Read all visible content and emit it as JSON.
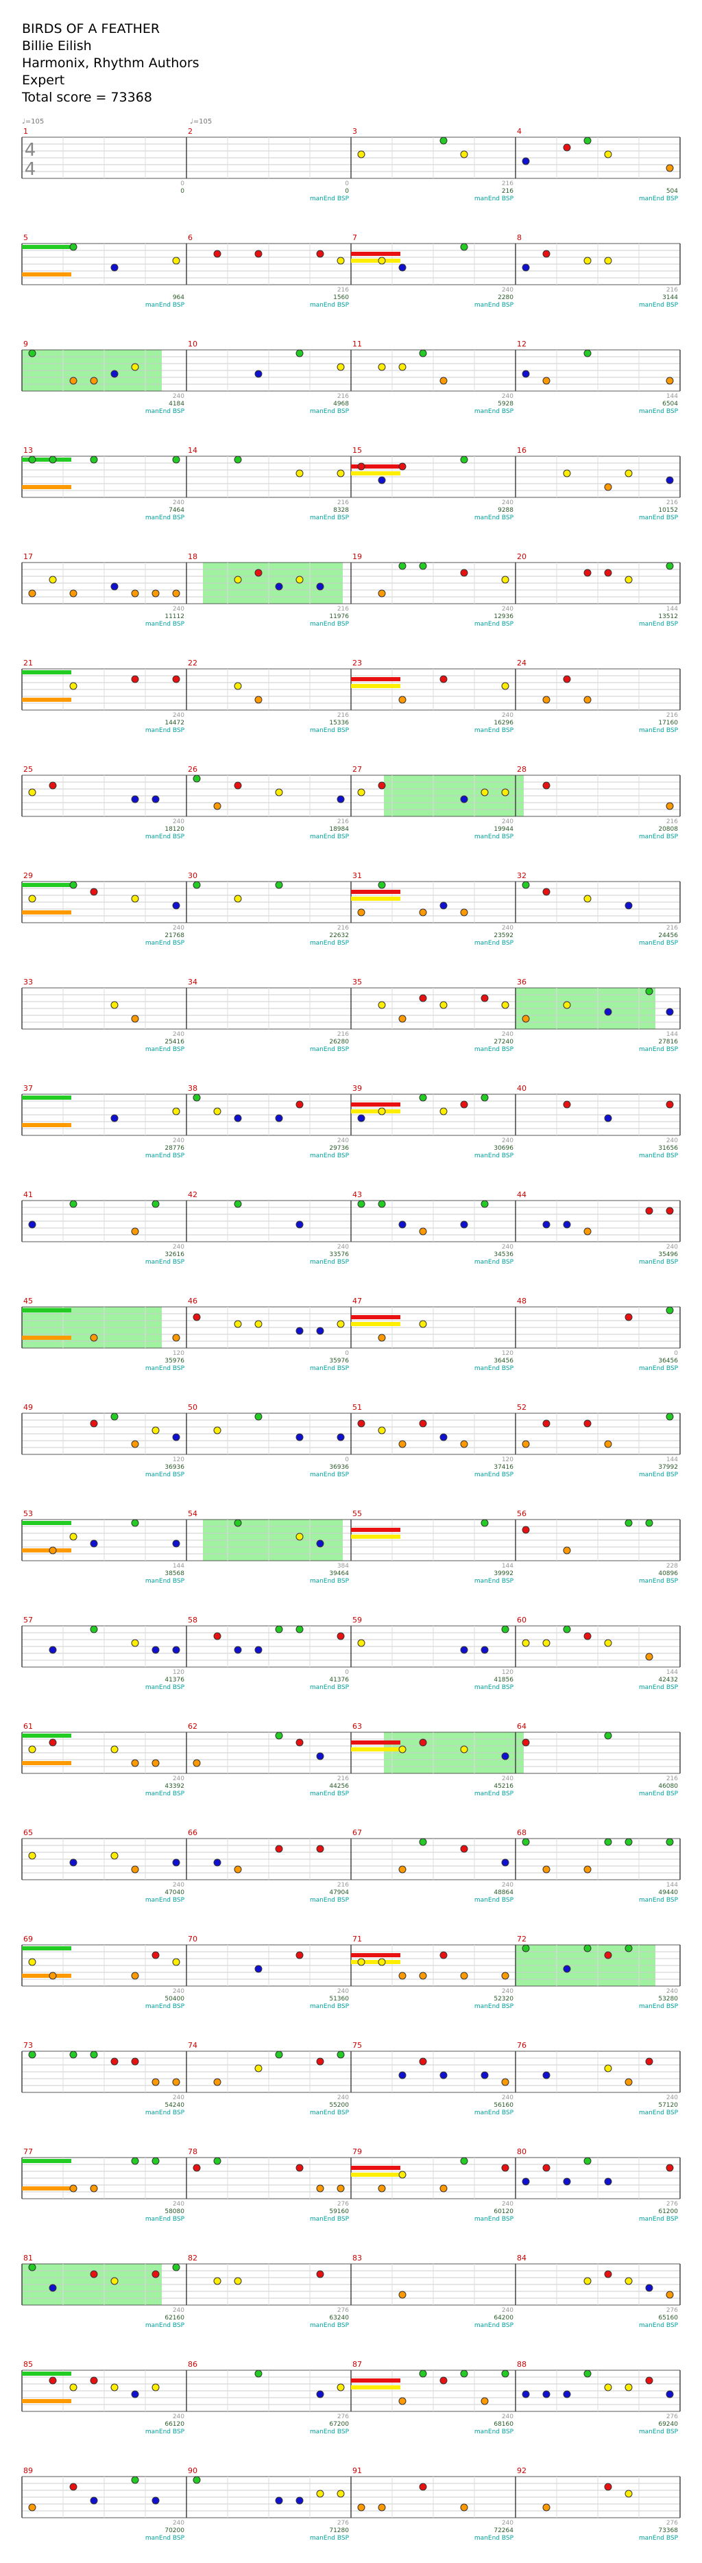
{
  "header": {
    "title": "BIRDS OF A FEATHER",
    "artist": "Billie Eilish",
    "charter": "Harmonix, Rhythm Authors",
    "difficulty": "Expert",
    "total_score": "Total score = 73368"
  },
  "tempo_marks": [
    {
      "label": "♩=105",
      "measure": 1
    },
    {
      "label": "♩=105",
      "measure": 2
    }
  ],
  "time_signature": {
    "top": "4",
    "bottom": "4"
  },
  "phrase_label": "manEnd BSP",
  "colors": {
    "green": "#22cc22",
    "red": "#e81010",
    "yellow": "#ffee00",
    "blue": "#1010d0",
    "orange": "#ff9900",
    "starpower": "#88ee88",
    "measure_number": "#cc0000",
    "score_text": "#2a5a2a",
    "tick_text": "#999999",
    "phrase_text": "#00a0a0"
  },
  "rows": [
    {
      "measures": [
        1,
        2,
        3,
        4
      ],
      "tick_scores": [
        "",
        "0",
        "0",
        "216"
      ],
      "cum_scores": [
        "",
        "0",
        "0",
        "216",
        "504"
      ],
      "phrase": [
        false,
        true,
        true,
        true
      ]
    },
    {
      "measures": [
        5,
        6,
        7,
        8
      ],
      "tick_scores": [
        "",
        "",
        "216",
        "240",
        "216"
      ],
      "cum_scores": [
        "",
        "964",
        "1560",
        "2280",
        "3144"
      ],
      "phrase": [
        true,
        true,
        true,
        true
      ]
    },
    {
      "measures": [
        9,
        10,
        11,
        12
      ],
      "tick_scores": [
        "",
        "240",
        "216",
        "240",
        "144"
      ],
      "cum_scores": [
        "",
        "4184",
        "4968",
        "5928",
        "6504"
      ],
      "phrase": [
        true,
        true,
        true,
        true
      ]
    },
    {
      "measures": [
        13,
        14,
        15,
        16
      ],
      "tick_scores": [
        "",
        "240",
        "216",
        "240",
        "216"
      ],
      "cum_scores": [
        "",
        "7464",
        "8328",
        "9288",
        "10152"
      ],
      "phrase": [
        true,
        true,
        true,
        true
      ]
    },
    {
      "measures": [
        17,
        18,
        19,
        20
      ],
      "tick_scores": [
        "",
        "240",
        "216",
        "240",
        "144"
      ],
      "cum_scores": [
        "",
        "11112",
        "11976",
        "12936",
        "13512"
      ],
      "phrase": [
        true,
        true,
        true,
        true
      ]
    },
    {
      "measures": [
        21,
        22,
        23,
        24
      ],
      "tick_scores": [
        "",
        "240",
        "216",
        "240",
        "216"
      ],
      "cum_scores": [
        "",
        "14472",
        "15336",
        "16296",
        "17160"
      ],
      "phrase": [
        true,
        true,
        true,
        true
      ]
    },
    {
      "measures": [
        25,
        26,
        27,
        28
      ],
      "tick_scores": [
        "",
        "240",
        "216",
        "240",
        "216"
      ],
      "cum_scores": [
        "",
        "18120",
        "18984",
        "19944",
        "20808"
      ],
      "phrase": [
        true,
        true,
        true,
        true
      ]
    },
    {
      "measures": [
        29,
        30,
        31,
        32
      ],
      "tick_scores": [
        "",
        "240",
        "216",
        "240",
        "216"
      ],
      "cum_scores": [
        "",
        "21768",
        "22632",
        "23592",
        "24456"
      ],
      "phrase": [
        true,
        true,
        true,
        true
      ]
    },
    {
      "measures": [
        33,
        34,
        35,
        36
      ],
      "tick_scores": [
        "",
        "240",
        "216",
        "240",
        "144"
      ],
      "cum_scores": [
        "",
        "25416",
        "26280",
        "27240",
        "27816"
      ],
      "phrase": [
        true,
        true,
        true,
        true
      ]
    },
    {
      "measures": [
        37,
        38,
        39,
        40
      ],
      "tick_scores": [
        "",
        "240",
        "240",
        "240",
        "240"
      ],
      "cum_scores": [
        "",
        "28776",
        "29736",
        "30696",
        "31656"
      ],
      "phrase": [
        true,
        true,
        true,
        true
      ]
    },
    {
      "measures": [
        41,
        42,
        43,
        44
      ],
      "tick_scores": [
        "",
        "240",
        "240",
        "240",
        "240"
      ],
      "cum_scores": [
        "",
        "32616",
        "33576",
        "34536",
        "35496"
      ],
      "phrase": [
        true,
        true,
        true,
        true
      ]
    },
    {
      "measures": [
        45,
        46,
        47,
        48
      ],
      "tick_scores": [
        "",
        "120",
        "0",
        "120",
        "0"
      ],
      "cum_scores": [
        "",
        "35976",
        "35976",
        "36456",
        "36456"
      ],
      "phrase": [
        true,
        true,
        true,
        true
      ]
    },
    {
      "measures": [
        49,
        50,
        51,
        52
      ],
      "tick_scores": [
        "",
        "120",
        "0",
        "120",
        "144"
      ],
      "cum_scores": [
        "",
        "36936",
        "36936",
        "37416",
        "37992"
      ],
      "phrase": [
        true,
        true,
        true,
        true
      ]
    },
    {
      "measures": [
        53,
        54,
        55,
        56
      ],
      "tick_scores": [
        "",
        "144",
        "384",
        "144",
        "228"
      ],
      "cum_scores": [
        "",
        "38568",
        "39464",
        "39992",
        "40896"
      ],
      "phrase": [
        true,
        true,
        true,
        true
      ]
    },
    {
      "measures": [
        57,
        58,
        59,
        60
      ],
      "tick_scores": [
        "",
        "120",
        "0",
        "120",
        "144"
      ],
      "cum_scores": [
        "",
        "41376",
        "41376",
        "41856",
        "42432"
      ],
      "phrase": [
        true,
        true,
        true,
        true
      ]
    },
    {
      "measures": [
        61,
        62,
        63,
        64
      ],
      "tick_scores": [
        "",
        "240",
        "216",
        "240",
        "216"
      ],
      "cum_scores": [
        "",
        "43392",
        "44256",
        "45216",
        "46080"
      ],
      "phrase": [
        true,
        true,
        true,
        true
      ]
    },
    {
      "measures": [
        65,
        66,
        67,
        68
      ],
      "tick_scores": [
        "",
        "240",
        "216",
        "240",
        "144"
      ],
      "cum_scores": [
        "",
        "47040",
        "47904",
        "48864",
        "49440"
      ],
      "phrase": [
        true,
        true,
        true,
        true
      ]
    },
    {
      "measures": [
        69,
        70,
        71,
        72
      ],
      "tick_scores": [
        "",
        "240",
        "240",
        "240",
        "240"
      ],
      "cum_scores": [
        "",
        "50400",
        "51360",
        "52320",
        "53280"
      ],
      "phrase": [
        true,
        true,
        true,
        true
      ]
    },
    {
      "measures": [
        73,
        74,
        75,
        76
      ],
      "tick_scores": [
        "",
        "240",
        "240",
        "240",
        "240"
      ],
      "cum_scores": [
        "",
        "54240",
        "55200",
        "56160",
        "57120"
      ],
      "phrase": [
        true,
        true,
        true,
        true
      ]
    },
    {
      "measures": [
        77,
        78,
        79,
        80
      ],
      "tick_scores": [
        "",
        "240",
        "276",
        "240",
        "276"
      ],
      "cum_scores": [
        "",
        "58080",
        "59160",
        "60120",
        "61200"
      ],
      "phrase": [
        true,
        true,
        true,
        true
      ]
    },
    {
      "measures": [
        81,
        82,
        83,
        84
      ],
      "tick_scores": [
        "",
        "240",
        "276",
        "240",
        "276"
      ],
      "cum_scores": [
        "",
        "62160",
        "63240",
        "64200",
        "65160"
      ],
      "phrase": [
        true,
        true,
        true,
        true
      ]
    },
    {
      "measures": [
        85,
        86,
        87,
        88
      ],
      "tick_scores": [
        "",
        "240",
        "276",
        "240",
        "276"
      ],
      "cum_scores": [
        "",
        "66120",
        "67200",
        "68160",
        "69240"
      ],
      "phrase": [
        true,
        true,
        true,
        true
      ]
    },
    {
      "measures": [
        89,
        90,
        91,
        92
      ],
      "tick_scores": [
        "",
        "240",
        "276",
        "240",
        "276"
      ],
      "cum_scores": [
        "",
        "70200",
        "71280",
        "72264",
        "73368"
      ],
      "phrase": [
        true,
        true,
        true,
        true
      ]
    }
  ]
}
